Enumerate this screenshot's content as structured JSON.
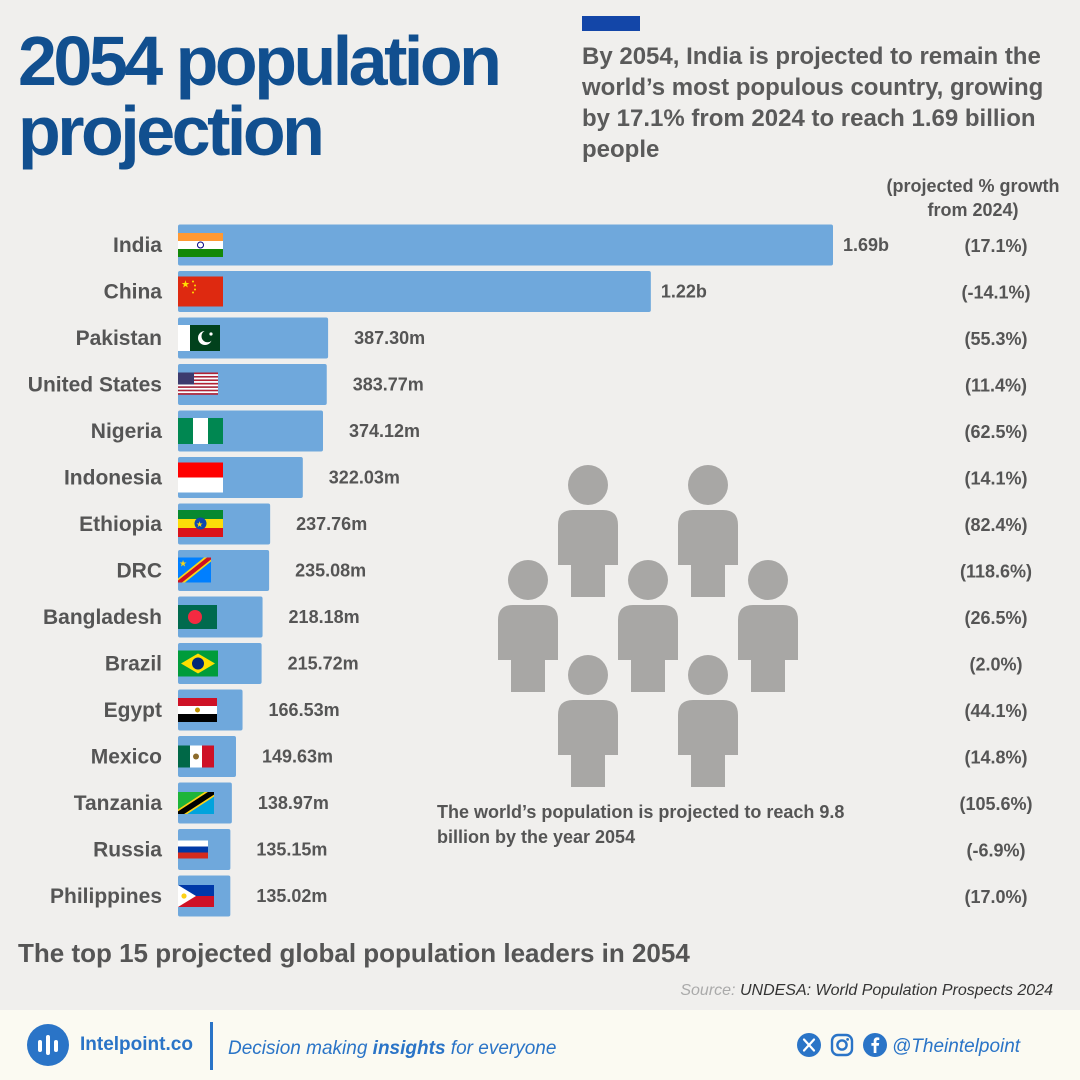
{
  "header": {
    "title": "2054 population\nprojection",
    "subtitle": "By 2054, India is projected to remain the world’s most populous country, growing by 17.1% from 2024 to reach 1.69 billion people",
    "growth_header": "(projected % growth from 2024)"
  },
  "chart_data": {
    "type": "bar",
    "orientation": "horizontal",
    "title": "2054 population projection",
    "xlabel": "",
    "ylabel": "",
    "unit": "people",
    "bar_color": "#6fa8dc",
    "categories": [
      "India",
      "China",
      "Pakistan",
      "United States",
      "Nigeria",
      "Indonesia",
      "Ethiopia",
      "DRC",
      "Bangladesh",
      "Brazil",
      "Egypt",
      "Mexico",
      "Tanzania",
      "Russia",
      "Philippines"
    ],
    "values": [
      1690000000,
      1220000000,
      387300000,
      383770000,
      374120000,
      322030000,
      237760000,
      235080000,
      218180000,
      215720000,
      166530000,
      149630000,
      138970000,
      135150000,
      135020000
    ],
    "value_labels": [
      "1.69b",
      "1.22b",
      "387.30m",
      "383.77m",
      "374.12m",
      "322.03m",
      "237.76m",
      "235.08m",
      "218.18m",
      "215.72m",
      "166.53m",
      "149.63m",
      "138.97m",
      "135.15m",
      "135.02m"
    ],
    "growth_values": [
      17.1,
      -14.1,
      55.3,
      11.4,
      62.5,
      14.1,
      82.4,
      118.6,
      26.5,
      2.0,
      44.1,
      14.8,
      105.6,
      -6.9,
      17.0
    ],
    "growth_labels": [
      "(17.1%)",
      "(-14.1%)",
      "(55.3%)",
      "(11.4%)",
      "(62.5%)",
      "(14.1%)",
      "(82.4%)",
      "(118.6%)",
      "(26.5%)",
      "(2.0%)",
      "(44.1%)",
      "(14.8%)",
      "(105.6%)",
      "(-6.9%)",
      "(17.0%)"
    ],
    "flags": [
      "india-flag-icon",
      "china-flag-icon",
      "pakistan-flag-icon",
      "united-states-flag-icon",
      "nigeria-flag-icon",
      "indonesia-flag-icon",
      "ethiopia-flag-icon",
      "drc-flag-icon",
      "bangladesh-flag-icon",
      "brazil-flag-icon",
      "egypt-flag-icon",
      "mexico-flag-icon",
      "tanzania-flag-icon",
      "russia-flag-icon",
      "philippines-flag-icon"
    ],
    "xlim": [
      0,
      1690000000
    ],
    "grid": false,
    "legend": "none"
  },
  "callout": {
    "text": "The world’s population is projected to reach 9.8 billion by the year 2054",
    "icon": "people-group-icon"
  },
  "footnote": "The top 15 projected global population leaders in 2054",
  "source": {
    "prefix": "Source:",
    "text": "UNDESA: World Population Prospects 2024"
  },
  "footer": {
    "brand": "Intelpoint.co",
    "tagline_pre": "Decision making ",
    "tagline_bold": "insights",
    "tagline_post": " for everyone",
    "handle": "@Theintelpoint",
    "social_icons": [
      "x-icon",
      "instagram-icon",
      "facebook-icon"
    ]
  },
  "colors": {
    "title": "#114f8f",
    "accent": "#1346a8",
    "bar": "#6fa8dc",
    "text": "#555555",
    "brand": "#2a74c7",
    "background": "#f0efed",
    "people_icon": "#a8a7a5"
  }
}
